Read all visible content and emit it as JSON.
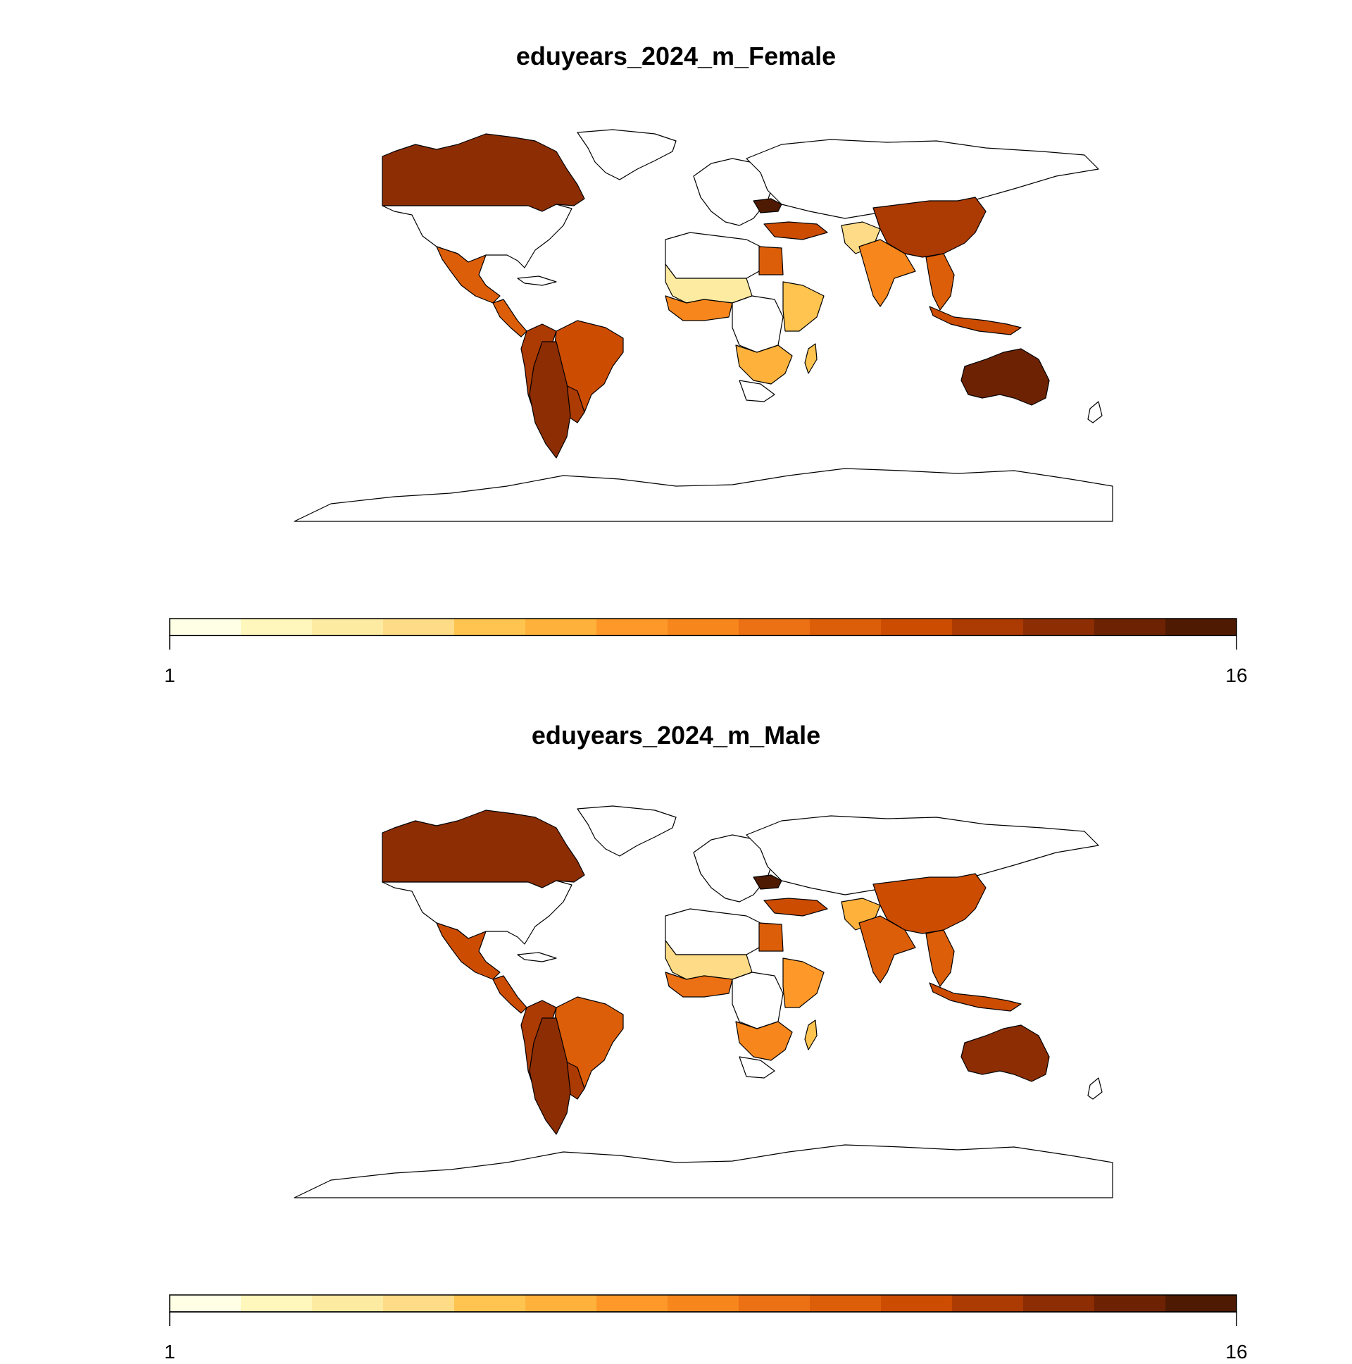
{
  "maps": [
    {
      "title": "eduyears_2024_m_Female",
      "regions": {
        "canada": 13,
        "greenland": 0,
        "usa": 0,
        "mexico": 10,
        "central_america": 10,
        "cuba": 0,
        "andean": 12,
        "brazil": 11,
        "southern_cone": 13.5,
        "paraguay_uruguay": 12,
        "australia": 14,
        "new_zealand": 0,
        "china": 12,
        "russia": 0,
        "ukraine": 15,
        "turkey_caucasus": 11,
        "india": 8,
        "pakistan_afghan": 4,
        "indochina": 10,
        "indonesia": 11,
        "egypt": 10,
        "north_africa": 0,
        "sahel_west": 3,
        "west_coast": 8,
        "central_africa": 0,
        "east_africa": 5,
        "southern_africa": 0,
        "south_central_africa": 6,
        "madagascar": 5,
        "europe": 0
      }
    },
    {
      "title": "eduyears_2024_m_Male",
      "regions": {
        "canada": 13,
        "greenland": 0,
        "usa": 0,
        "mexico": 11,
        "central_america": 11,
        "cuba": 0,
        "andean": 12,
        "brazil": 10,
        "southern_cone": 13,
        "paraguay_uruguay": 12,
        "australia": 13,
        "new_zealand": 0,
        "china": 11,
        "russia": 0,
        "ukraine": 15,
        "turkey_caucasus": 11,
        "india": 10,
        "pakistan_afghan": 6,
        "indochina": 10,
        "indonesia": 11,
        "egypt": 10,
        "north_africa": 0,
        "sahel_west": 4,
        "west_coast": 9,
        "central_africa": 0,
        "east_africa": 7,
        "southern_africa": 0,
        "south_central_africa": 8,
        "madagascar": 5,
        "europe": 0
      }
    }
  ],
  "legend": {
    "min_label": "1",
    "max_label": "16",
    "min": 1,
    "max": 16,
    "colors": [
      "#FFFFE5",
      "#FFF7BC",
      "#FEEBA2",
      "#FEDC87",
      "#FEC44F",
      "#FEB23C",
      "#FE9929",
      "#F7861C",
      "#EC7014",
      "#DC5E09",
      "#CC4C02",
      "#AC3A03",
      "#8C2D04",
      "#6D2303",
      "#4E1A02"
    ]
  }
}
